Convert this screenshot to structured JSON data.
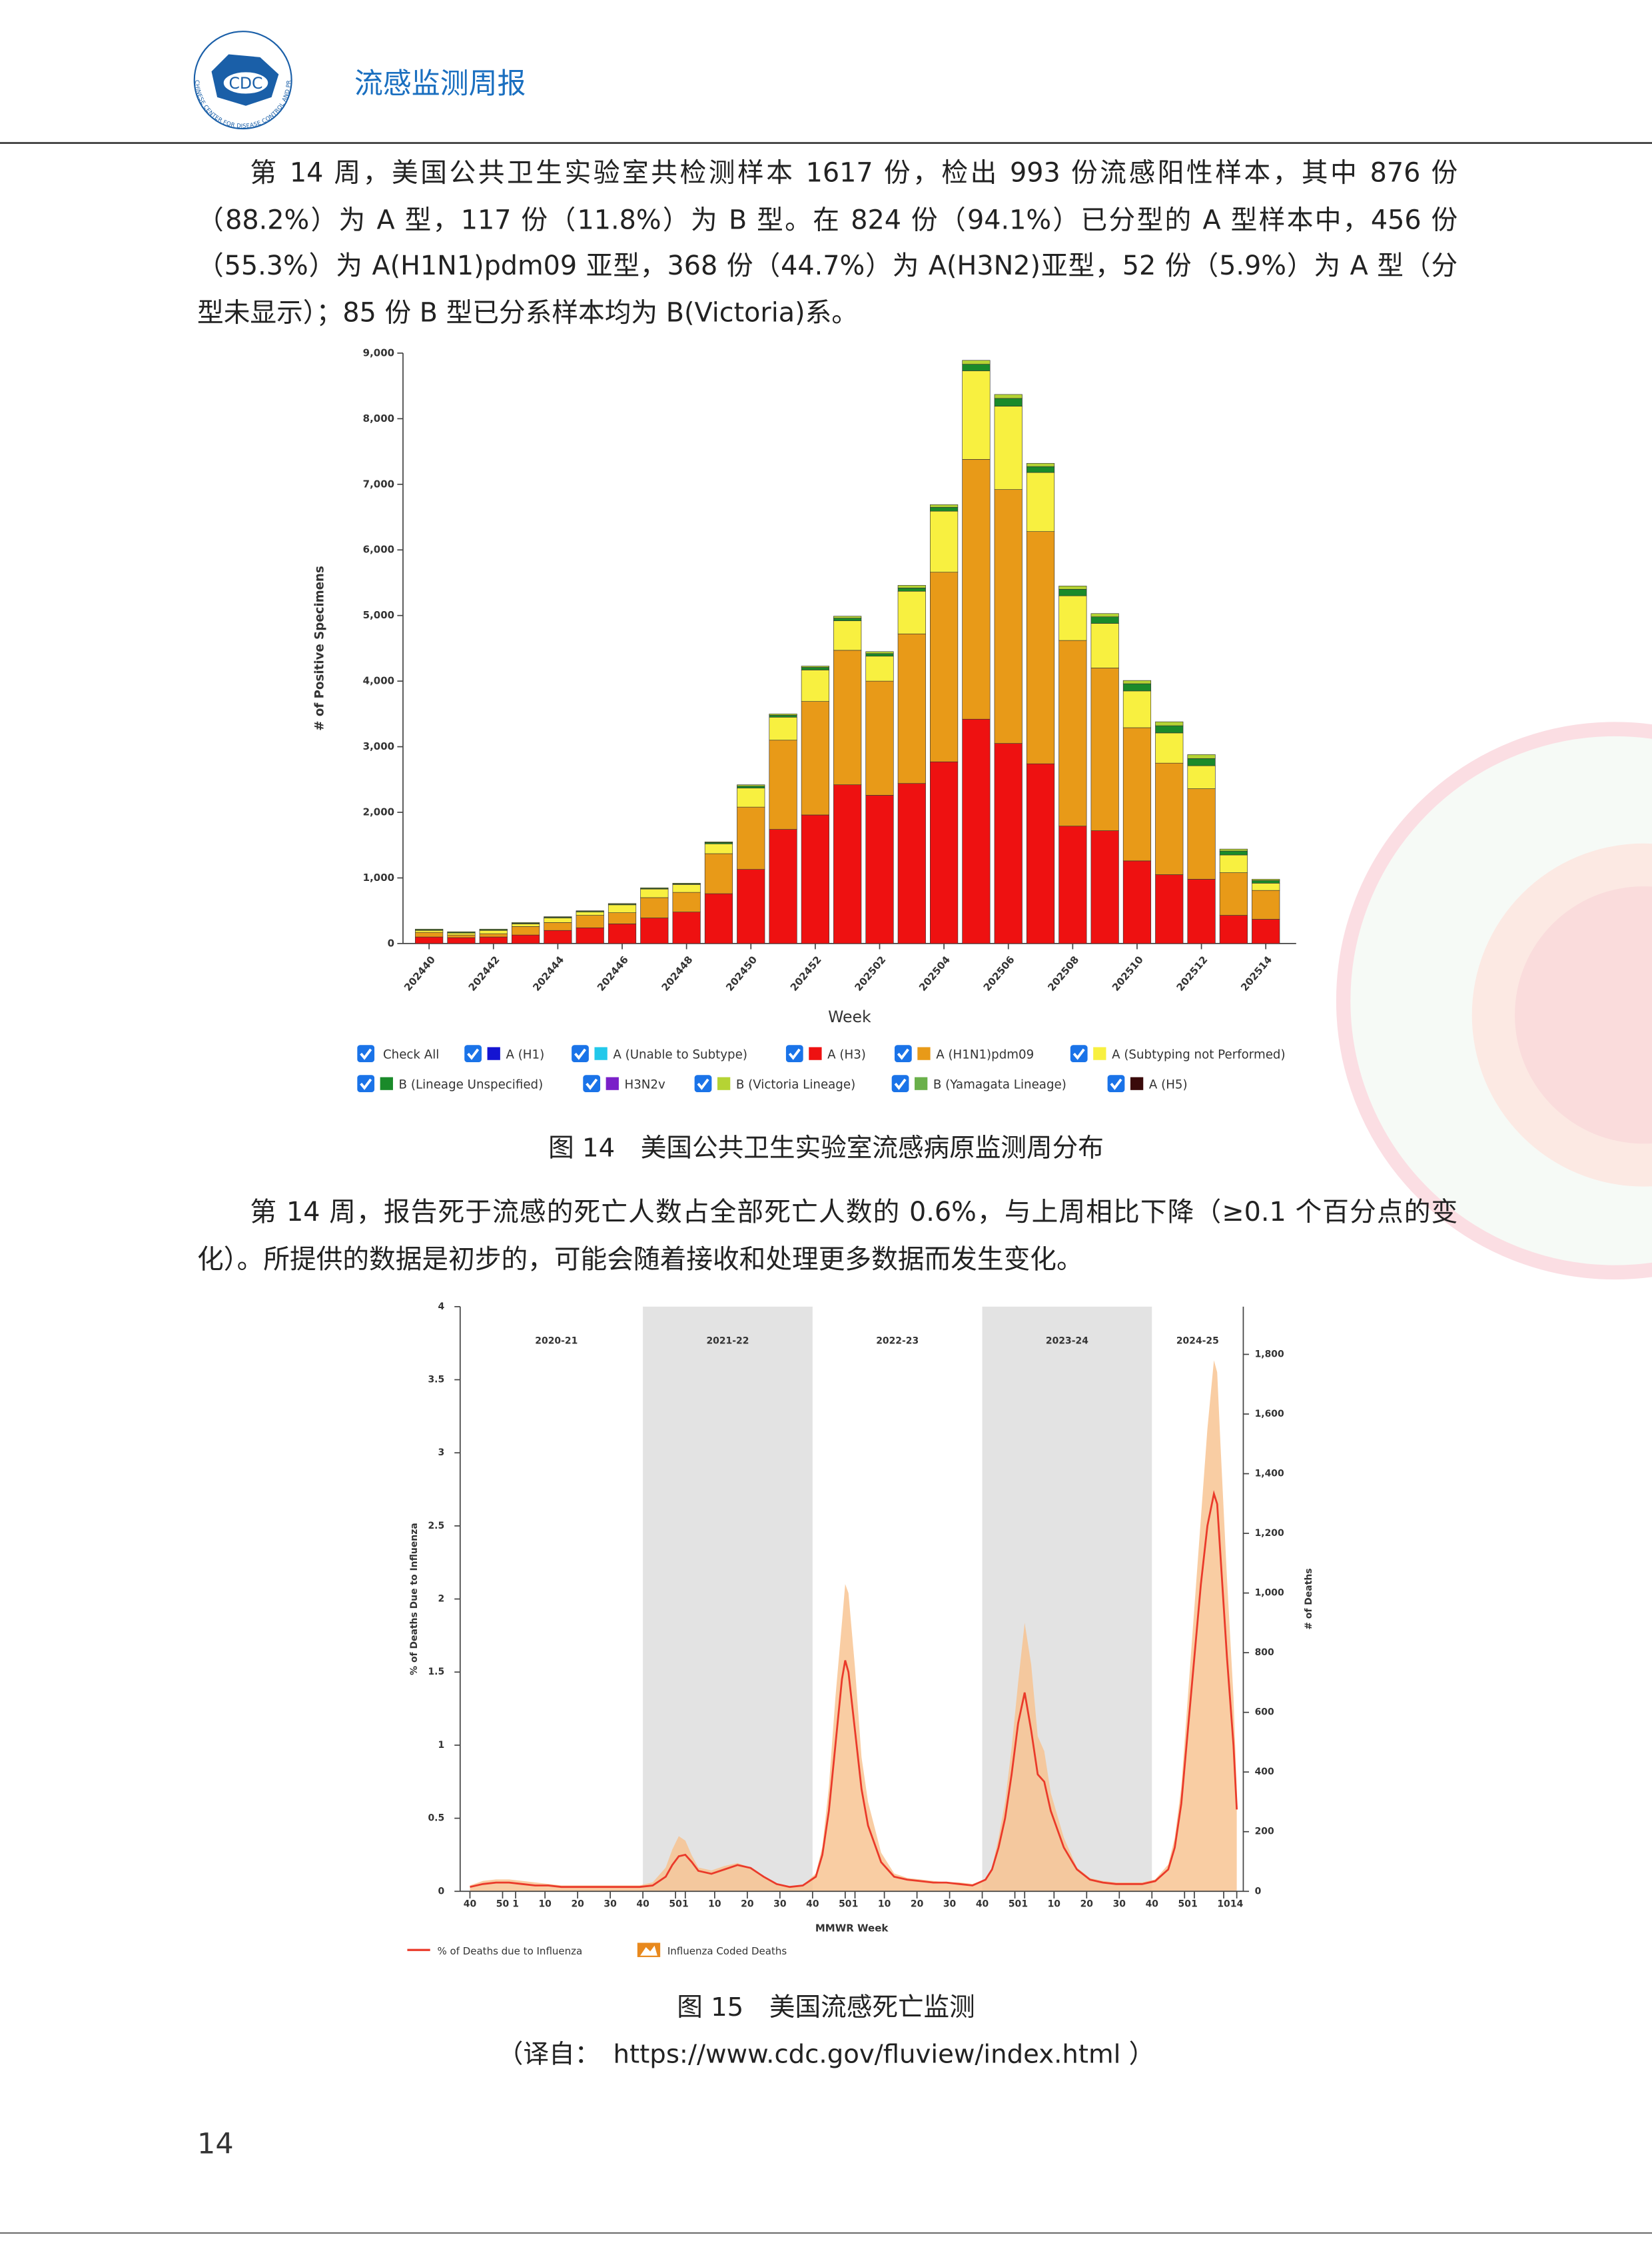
{
  "header": {
    "logo_text": "CDC",
    "logo_ring": "CHINESE CENTER FOR DISEASE CONTROL AND PREVENTION",
    "title": "流感监测周报"
  },
  "paragraphs": [
    "第 14 周，美国公共卫生实验室共检测样本 1617 份，检出 993 份流感阳性样本，其中 876 份（88.2%）为 A 型，117 份（11.8%）为 B 型。在 824 份（94.1%）已分型的 A 型样本中，456 份（55.3%）为 A(H1N1)pdm09 亚型，368 份（44.7%）为 A(H3N2)亚型，52 份（5.9%）为 A 型（分型未显示）；85 份 B 型已分系样本均为 B(Victoria)系。",
    "第 14 周，报告死于流感的死亡人数占全部死亡人数的 0.6%，与上周相比下降（≥0.1 个百分点的变化）。所提供的数据是初步的，可能会随着接收和处理更多数据而发生变化。"
  ],
  "captions": [
    "图 14　美国公共卫生实验室流感病原监测周分布",
    "图 15　美国流感死亡监测",
    "（译自：　https://www.cdc.gov/fluview/index.html ）"
  ],
  "page_number": "14",
  "chart_data": [
    {
      "type": "bar",
      "stacked": true,
      "ylabel": "# of Positive Specimens",
      "xlabel": "Week",
      "legend_check_all": "Check All",
      "categories": [
        "202440",
        null,
        "202442",
        null,
        "202444",
        null,
        "202446",
        null,
        "202448",
        null,
        "202450",
        null,
        "202452",
        null,
        "202502",
        null,
        "202504",
        null,
        "202506",
        null,
        "202508",
        null,
        "202510",
        null,
        "202512",
        null,
        "202514"
      ],
      "ylim": [
        0,
        9000
      ],
      "yticks": [
        0,
        {
          "value": 1000,
          "label": "1,000"
        },
        {
          "value": 2000,
          "label": "2,000"
        },
        {
          "value": 3000,
          "label": "3,000"
        },
        {
          "value": 4000,
          "label": "4,000"
        },
        {
          "value": 5000,
          "label": "5,000"
        },
        {
          "value": 6000,
          "label": "6,000"
        },
        {
          "value": 7000,
          "label": "7,000"
        },
        {
          "value": 8000,
          "label": "8,000"
        },
        {
          "value": 9000,
          "label": "9,000"
        }
      ],
      "series": [
        {
          "name": "A (H1)",
          "color": "#1414d2",
          "values": [
            0,
            0,
            0,
            0,
            0,
            0,
            0,
            0,
            0,
            0,
            0,
            0,
            0,
            0,
            0,
            0,
            0,
            0,
            0,
            0,
            0,
            0,
            0,
            0,
            0,
            0,
            0
          ]
        },
        {
          "name": "A (Unable to Subtype)",
          "color": "#22c8ea",
          "values": [
            0,
            0,
            0,
            0,
            0,
            0,
            0,
            0,
            0,
            0,
            0,
            0,
            0,
            0,
            0,
            0,
            0,
            0,
            0,
            0,
            0,
            0,
            0,
            0,
            0,
            0,
            0
          ]
        },
        {
          "name": "A (H3)",
          "color": "#ee1111",
          "values": [
            100,
            90,
            100,
            130,
            200,
            240,
            300,
            390,
            480,
            760,
            1130,
            1740,
            1960,
            2420,
            2260,
            2440,
            2770,
            3420,
            3050,
            2740,
            1790,
            1720,
            1260,
            1050,
            980,
            430,
            370
          ]
        },
        {
          "name": "A (H1N1)pdm09",
          "color": "#e89a18",
          "values": [
            70,
            40,
            50,
            130,
            120,
            190,
            170,
            310,
            300,
            610,
            950,
            1360,
            1730,
            2050,
            1740,
            2280,
            2890,
            3960,
            3870,
            3540,
            2830,
            2480,
            2030,
            1700,
            1380,
            650,
            440
          ]
        },
        {
          "name": "A (Subtyping not Performed)",
          "color": "#f8f040",
          "values": [
            30,
            30,
            50,
            40,
            70,
            50,
            120,
            130,
            120,
            150,
            290,
            350,
            480,
            450,
            380,
            650,
            930,
            1350,
            1270,
            900,
            680,
            680,
            560,
            460,
            350,
            270,
            110
          ]
        },
        {
          "name": "B (Lineage Unspecified)",
          "color": "#1a8a2a",
          "values": [
            10,
            10,
            10,
            10,
            10,
            10,
            10,
            10,
            10,
            20,
            30,
            30,
            40,
            40,
            40,
            50,
            60,
            100,
            120,
            90,
            100,
            100,
            110,
            110,
            110,
            60,
            40
          ]
        },
        {
          "name": "H3N2v",
          "color": "#7a20c8",
          "values": [
            0,
            0,
            0,
            0,
            0,
            0,
            0,
            0,
            0,
            0,
            0,
            0,
            0,
            0,
            0,
            0,
            0,
            0,
            0,
            0,
            0,
            0,
            0,
            0,
            0,
            0,
            0
          ]
        },
        {
          "name": "B (Victoria Lineage)",
          "color": "#b5d334",
          "values": [
            10,
            10,
            10,
            10,
            10,
            10,
            10,
            10,
            10,
            10,
            20,
            20,
            20,
            30,
            30,
            40,
            40,
            60,
            60,
            50,
            50,
            50,
            50,
            60,
            60,
            30,
            20
          ]
        },
        {
          "name": "B (Yamagata Lineage)",
          "color": "#6ab04a",
          "values": [
            0,
            0,
            0,
            0,
            0,
            0,
            0,
            0,
            0,
            0,
            0,
            0,
            0,
            0,
            0,
            0,
            0,
            0,
            0,
            0,
            0,
            0,
            0,
            0,
            0,
            0,
            0
          ]
        },
        {
          "name": "A (H5)",
          "color": "#3a0a0a",
          "values": [
            0,
            0,
            0,
            0,
            0,
            0,
            0,
            0,
            0,
            0,
            0,
            0,
            0,
            0,
            0,
            0,
            0,
            0,
            0,
            0,
            0,
            0,
            0,
            0,
            0,
            0,
            0
          ]
        }
      ]
    },
    {
      "type": "line",
      "ylabel": "% of Deaths Due to Influenza",
      "y2label": "# of Deaths",
      "xlabel": "MMWR Week",
      "seasons": [
        {
          "label": "2020-21",
          "start": 0,
          "end": 53,
          "shaded": false
        },
        {
          "label": "2021-22",
          "start": 53,
          "end": 105,
          "shaded": true
        },
        {
          "label": "2022-23",
          "start": 105,
          "end": 157,
          "shaded": false
        },
        {
          "label": "2023-24",
          "start": 157,
          "end": 209,
          "shaded": true
        },
        {
          "label": "2024-25",
          "start": 209,
          "end": 237,
          "shaded": false
        }
      ],
      "xlim": [
        -3,
        237
      ],
      "xticks": [
        {
          "value": 0,
          "label": "40"
        },
        {
          "value": 10,
          "label": "50"
        },
        {
          "value": 14,
          "label": "1"
        },
        {
          "value": 23,
          "label": "10"
        },
        {
          "value": 33,
          "label": "20"
        },
        {
          "value": 43,
          "label": "30"
        },
        {
          "value": 53,
          "label": "40"
        },
        {
          "value": 63,
          "label": "50"
        },
        {
          "value": 66,
          "label": "1"
        },
        {
          "value": 75,
          "label": "10"
        },
        {
          "value": 85,
          "label": "20"
        },
        {
          "value": 95,
          "label": "30"
        },
        {
          "value": 105,
          "label": "40"
        },
        {
          "value": 115,
          "label": "50"
        },
        {
          "value": 118,
          "label": "1"
        },
        {
          "value": 127,
          "label": "10"
        },
        {
          "value": 137,
          "label": "20"
        },
        {
          "value": 147,
          "label": "30"
        },
        {
          "value": 157,
          "label": "40"
        },
        {
          "value": 167,
          "label": "50"
        },
        {
          "value": 170,
          "label": "1"
        },
        {
          "value": 179,
          "label": "10"
        },
        {
          "value": 189,
          "label": "20"
        },
        {
          "value": 199,
          "label": "30"
        },
        {
          "value": 209,
          "label": "40"
        },
        {
          "value": 219,
          "label": "50"
        },
        {
          "value": 222,
          "label": "1"
        },
        {
          "value": 231,
          "label": "10"
        },
        {
          "value": 235,
          "label": "14"
        }
      ],
      "ylim": [
        0,
        4
      ],
      "yticks": [
        0,
        0.5,
        1,
        1.5,
        2,
        2.5,
        3,
        3.5,
        4
      ],
      "y2lim": [
        0,
        1960
      ],
      "y2ticks": [
        0,
        200,
        400,
        600,
        800,
        {
          "value": 1000,
          "label": "1,000"
        },
        {
          "value": 1200,
          "label": "1,200"
        },
        {
          "value": 1400,
          "label": "1,400"
        },
        {
          "value": 1600,
          "label": "1,600"
        },
        {
          "value": 1800,
          "label": "1,800"
        }
      ],
      "x": [
        0,
        4,
        8,
        12,
        16,
        20,
        24,
        28,
        32,
        36,
        40,
        44,
        48,
        52,
        56,
        60,
        62,
        64,
        66,
        68,
        70,
        74,
        78,
        82,
        86,
        90,
        94,
        98,
        102,
        106,
        108,
        110,
        112,
        114,
        115,
        116,
        118,
        120,
        122,
        126,
        130,
        134,
        138,
        142,
        146,
        150,
        154,
        158,
        160,
        162,
        164,
        166,
        168,
        170,
        172,
        174,
        176,
        178,
        182,
        186,
        190,
        194,
        198,
        202,
        206,
        210,
        214,
        216,
        218,
        220,
        222,
        224,
        226,
        228,
        229,
        230,
        232,
        234,
        235
      ],
      "series": [
        {
          "name": "% of Deaths due to Influenza",
          "color": "#ea3a2a",
          "style": "line",
          "values": [
            0.03,
            0.05,
            0.06,
            0.06,
            0.05,
            0.04,
            0.04,
            0.03,
            0.03,
            0.03,
            0.03,
            0.03,
            0.03,
            0.03,
            0.04,
            0.1,
            0.18,
            0.24,
            0.25,
            0.2,
            0.14,
            0.12,
            0.15,
            0.18,
            0.16,
            0.1,
            0.05,
            0.03,
            0.04,
            0.1,
            0.25,
            0.55,
            1.0,
            1.45,
            1.58,
            1.5,
            1.1,
            0.7,
            0.45,
            0.2,
            0.1,
            0.08,
            0.07,
            0.06,
            0.06,
            0.05,
            0.04,
            0.08,
            0.15,
            0.3,
            0.5,
            0.8,
            1.15,
            1.36,
            1.1,
            0.8,
            0.75,
            0.55,
            0.3,
            0.15,
            0.08,
            0.06,
            0.05,
            0.05,
            0.05,
            0.07,
            0.15,
            0.3,
            0.6,
            1.1,
            1.6,
            2.1,
            2.5,
            2.72,
            2.65,
            2.3,
            1.6,
            1.0,
            0.56
          ]
        },
        {
          "name": "Influenza Coded Deaths",
          "color": "#f8c08c",
          "style": "area",
          "axis": "y2",
          "values": [
            20,
            35,
            40,
            40,
            35,
            30,
            25,
            20,
            20,
            20,
            20,
            20,
            20,
            20,
            30,
            80,
            140,
            185,
            170,
            120,
            80,
            70,
            85,
            95,
            80,
            50,
            25,
            15,
            20,
            60,
            150,
            350,
            650,
            900,
            1030,
            1000,
            750,
            450,
            300,
            130,
            60,
            45,
            40,
            35,
            30,
            30,
            25,
            40,
            80,
            180,
            300,
            480,
            700,
            900,
            760,
            520,
            470,
            330,
            180,
            80,
            45,
            35,
            30,
            30,
            30,
            40,
            90,
            180,
            350,
            650,
            950,
            1250,
            1550,
            1780,
            1740,
            1500,
            1050,
            650,
            340
          ]
        }
      ]
    }
  ]
}
